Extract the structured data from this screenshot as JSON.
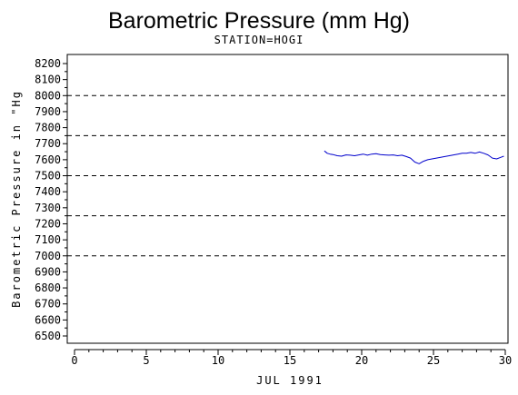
{
  "chart_data": {
    "type": "line",
    "title": "Barometric Pressure (mm Hg)",
    "subtitle": "STATION=HOGI",
    "xlabel": "JUL 1991",
    "ylabel": "Barometric Pressure in \"Hg",
    "xlim": [
      0,
      30
    ],
    "ylim": [
      6500,
      8200
    ],
    "x_ticks": [
      0,
      5,
      10,
      15,
      20,
      25,
      30
    ],
    "y_ticks": [
      6500,
      6600,
      6700,
      6800,
      6900,
      7000,
      7100,
      7200,
      7300,
      7400,
      7500,
      7600,
      7700,
      7800,
      7900,
      8000,
      8100,
      8200
    ],
    "reference_lines": [
      8000,
      7750,
      7500,
      7250,
      7000
    ],
    "line_color": "#0000cc",
    "series": [
      {
        "x": [
          17.4,
          17.6,
          17.8,
          18.0,
          18.3,
          18.6,
          18.9,
          19.2,
          19.5,
          19.8,
          20.1,
          20.4,
          20.7,
          21.0,
          21.3,
          21.6,
          21.9,
          22.2,
          22.5,
          22.8,
          23.1,
          23.4,
          23.7,
          24.0,
          24.3,
          24.6,
          24.9,
          25.2,
          25.5,
          25.8,
          26.1,
          26.4,
          26.7,
          27.0,
          27.3,
          27.6,
          27.9,
          28.2,
          28.5,
          28.8,
          29.1,
          29.4,
          29.7,
          29.9
        ],
        "y": [
          7655,
          7640,
          7635,
          7632,
          7625,
          7622,
          7630,
          7628,
          7625,
          7630,
          7635,
          7628,
          7635,
          7638,
          7632,
          7630,
          7628,
          7630,
          7625,
          7628,
          7620,
          7610,
          7585,
          7575,
          7590,
          7600,
          7605,
          7610,
          7615,
          7620,
          7625,
          7630,
          7635,
          7640,
          7640,
          7645,
          7640,
          7648,
          7640,
          7630,
          7610,
          7605,
          7615,
          7622
        ]
      }
    ]
  }
}
